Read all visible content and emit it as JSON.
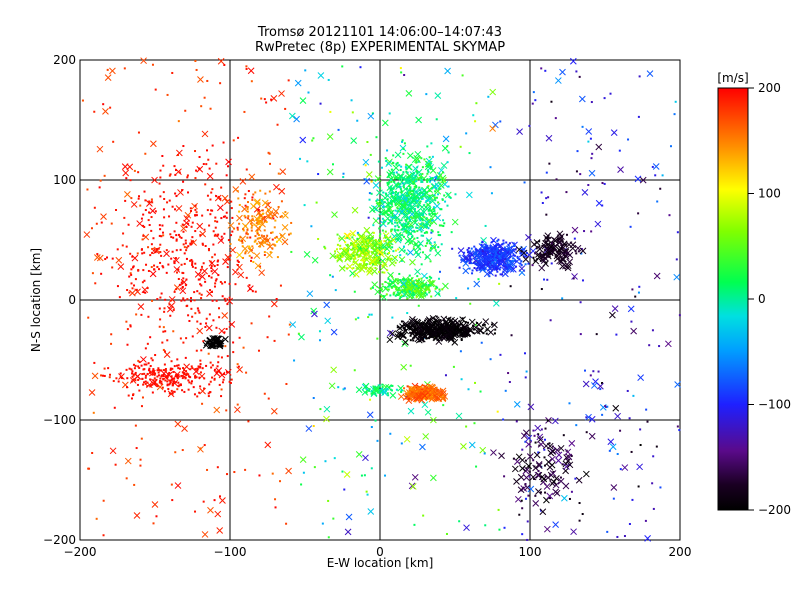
{
  "chart_data": {
    "type": "scatter",
    "title": "Tromsø 20121101 14:06:00–14:07:43",
    "subtitle": "RwPretec (8p) EXPERIMENTAL SKYMAP",
    "xlabel": "E-W location [km]",
    "ylabel": "N-S location [km]",
    "xlim": [
      -200,
      200
    ],
    "ylim": [
      -200,
      200
    ],
    "xticks": [
      -200,
      -100,
      0,
      100,
      200
    ],
    "yticks": [
      -200,
      -100,
      0,
      100,
      200
    ],
    "xtick_labels": [
      "−200",
      "−100",
      "0",
      "100",
      "200"
    ],
    "ytick_labels": [
      "−200",
      "−100",
      "0",
      "100",
      "200"
    ],
    "grid": true,
    "marker_legend": "small dots and × markers",
    "colorbar": {
      "label": "[m/s]",
      "range": [
        -200,
        200
      ],
      "ticks": [
        200,
        100,
        0,
        -100,
        -200
      ],
      "tick_labels": [
        "200",
        "100",
        "0",
        "−100",
        "−200"
      ],
      "colormap": "rainbow (black → purple → blue → cyan → green → yellow → red)"
    },
    "clusters": [
      {
        "name": "west-red",
        "x": [
          -200,
          -60
        ],
        "y": [
          -100,
          180
        ],
        "value": 190
      },
      {
        "name": "north-green",
        "x": [
          -20,
          60
        ],
        "y": [
          20,
          160
        ],
        "value": 10
      },
      {
        "name": "east-blue",
        "x": [
          40,
          120
        ],
        "y": [
          10,
          70
        ],
        "value": -90
      },
      {
        "name": "central-black",
        "x": [
          -20,
          90
        ],
        "y": [
          -60,
          0
        ],
        "value": -200
      },
      {
        "name": "south-orange",
        "x": [
          0,
          60
        ],
        "y": [
          -95,
          -60
        ],
        "value": 160
      }
    ],
    "seed": 20121101
  }
}
